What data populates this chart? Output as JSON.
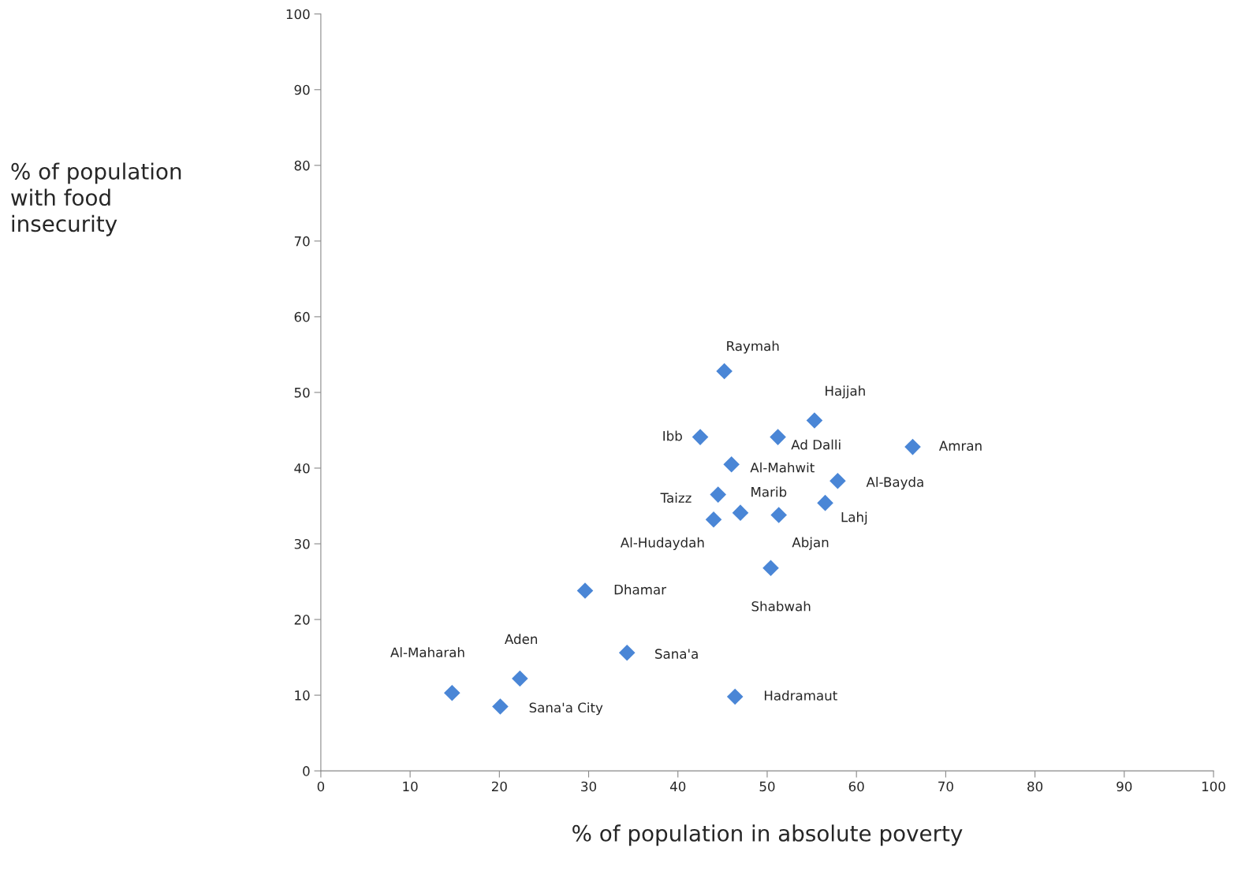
{
  "chart_data": {
    "type": "scatter",
    "xlabel": "% of population in absolute poverty",
    "ylabel": "% of population\nwith food\ninsecurity",
    "xlim": [
      0,
      100
    ],
    "xticks": [
      0,
      10,
      20,
      30,
      40,
      50,
      60,
      70,
      80,
      90,
      100
    ],
    "ylim": [
      0,
      100
    ],
    "yticks": [
      0,
      10,
      20,
      30,
      40,
      50,
      60,
      70,
      80,
      90,
      100
    ],
    "grid": false,
    "legend": false,
    "marker": "diamond",
    "series": [
      {
        "color": "#4a86d6",
        "x": [
          45.2,
          55.3,
          42.5,
          51.2,
          66.3,
          46.0,
          57.9,
          44.5,
          56.5,
          47.0,
          51.3,
          44.0,
          50.4,
          29.6,
          34.3,
          22.3,
          14.7,
          46.4,
          20.1
        ],
        "values": [
          52.8,
          46.3,
          44.1,
          44.1,
          42.8,
          40.5,
          38.3,
          36.5,
          35.4,
          34.1,
          33.8,
          33.2,
          26.8,
          23.8,
          15.6,
          12.2,
          10.3,
          9.8,
          8.5
        ]
      }
    ],
    "annotations": [
      {
        "text": "Raymah",
        "x": 45.2,
        "y": 52.8
      },
      {
        "text": "Hajjah",
        "x": 55.3,
        "y": 46.3
      },
      {
        "text": "Ibb",
        "x": 42.5,
        "y": 44.1
      },
      {
        "text": "Ad Dalli",
        "x": 51.2,
        "y": 44.1
      },
      {
        "text": "Amran",
        "x": 66.3,
        "y": 42.8
      },
      {
        "text": "Al-Mahwit",
        "x": 46.0,
        "y": 40.5
      },
      {
        "text": "Al-Bayda",
        "x": 57.9,
        "y": 38.3
      },
      {
        "text": "Taizz",
        "x": 44.5,
        "y": 36.5
      },
      {
        "text": "Lahj",
        "x": 56.5,
        "y": 35.4
      },
      {
        "text": "Marib",
        "x": 47.0,
        "y": 34.1
      },
      {
        "text": "Abjan",
        "x": 51.3,
        "y": 33.8
      },
      {
        "text": "Al-Hudaydah",
        "x": 44.0,
        "y": 33.2
      },
      {
        "text": "Shabwah",
        "x": 50.4,
        "y": 26.8
      },
      {
        "text": "Dhamar",
        "x": 29.6,
        "y": 23.8
      },
      {
        "text": "Sana'a",
        "x": 34.3,
        "y": 15.6
      },
      {
        "text": "Aden",
        "x": 22.3,
        "y": 12.2
      },
      {
        "text": "Al-Maharah",
        "x": 14.7,
        "y": 10.3
      },
      {
        "text": "Hadramaut",
        "x": 46.4,
        "y": 9.8
      },
      {
        "text": "Sana'a City",
        "x": 20.1,
        "y": 8.5
      }
    ]
  }
}
